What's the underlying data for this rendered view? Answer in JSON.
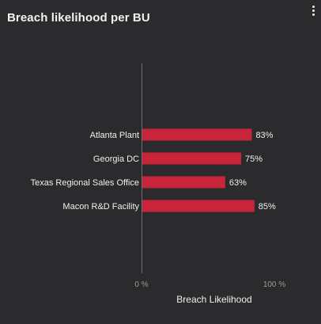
{
  "widget": {
    "title": "Breach likelihood per BU",
    "menu_icon": "more-vertical-icon"
  },
  "colors": {
    "background": "#2b2b2d",
    "bar": "#c8243a",
    "axis": "#6e6e6e",
    "text": "#f0f0f0",
    "tick_text": "#9a9a9a"
  },
  "chart_data": {
    "type": "bar",
    "orientation": "horizontal",
    "categories": [
      "Atlanta Plant",
      "Georgia DC",
      "Texas Regional Sales Office",
      "Macon R&D Facility"
    ],
    "values": [
      83,
      75,
      63,
      85
    ],
    "value_labels": [
      "83%",
      "75%",
      "63%",
      "85%"
    ],
    "xlabel": "Breach Likelihood",
    "xlim": [
      0,
      100
    ],
    "x_ticks": [
      "0 %",
      "100 %"
    ],
    "grid": false,
    "legend": "none"
  }
}
